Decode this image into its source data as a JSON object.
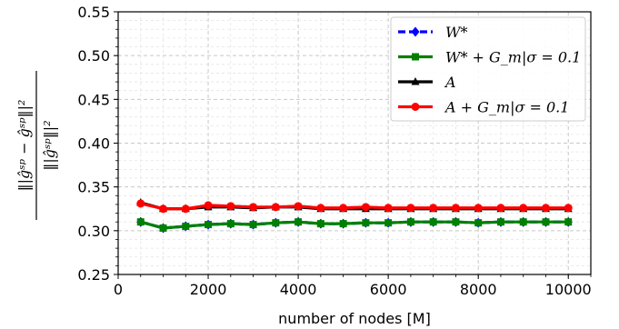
{
  "chart_data": {
    "type": "line",
    "xlabel": "number of nodes [M]",
    "ylabel": {
      "numerator": "‖|ĝˢᵖ − ĝˢᵖ‖|²",
      "denominator": "‖|ĝˢᵖ‖|²"
    },
    "xlim": [
      0,
      10500
    ],
    "ylim": [
      0.25,
      0.55
    ],
    "xticks": [
      0,
      2000,
      4000,
      6000,
      8000,
      10000
    ],
    "xtick_labels": [
      "0",
      "2000",
      "4000",
      "6000",
      "8000",
      "10000"
    ],
    "yticks": [
      0.25,
      0.3,
      0.35,
      0.4,
      0.45,
      0.5,
      0.55
    ],
    "ytick_labels": [
      "0.25",
      "0.30",
      "0.35",
      "0.40",
      "0.45",
      "0.50",
      "0.55"
    ],
    "grid": true,
    "legend_position": "top-right",
    "x": [
      500,
      1000,
      1500,
      2000,
      2500,
      3000,
      3500,
      4000,
      4500,
      5000,
      5500,
      6000,
      6500,
      7000,
      7500,
      8000,
      8500,
      9000,
      9500,
      10000
    ],
    "series": [
      {
        "name": "W*",
        "color": "#0000ff",
        "marker": "diamond",
        "dash": true,
        "values": [
          0.31,
          0.303,
          0.305,
          0.307,
          0.308,
          0.307,
          0.309,
          0.31,
          0.308,
          0.308,
          0.309,
          0.309,
          0.31,
          0.31,
          0.31,
          0.309,
          0.31,
          0.31,
          0.31,
          0.31
        ]
      },
      {
        "name": "W* + G_m|σ = 0.1",
        "color": "#008000",
        "marker": "square",
        "dash": false,
        "values": [
          0.31,
          0.303,
          0.305,
          0.307,
          0.308,
          0.307,
          0.309,
          0.31,
          0.308,
          0.308,
          0.309,
          0.309,
          0.31,
          0.31,
          0.31,
          0.309,
          0.31,
          0.31,
          0.31,
          0.31
        ]
      },
      {
        "name": "A",
        "color": "#000000",
        "marker": "triangle",
        "dash": false,
        "values": [
          0.332,
          0.325,
          0.325,
          0.327,
          0.327,
          0.326,
          0.327,
          0.327,
          0.325,
          0.325,
          0.325,
          0.325,
          0.325,
          0.325,
          0.325,
          0.325,
          0.325,
          0.325,
          0.325,
          0.325
        ]
      },
      {
        "name": "A + G_m|σ = 0.1",
        "color": "#ff0000",
        "marker": "circle",
        "dash": false,
        "values": [
          0.331,
          0.325,
          0.325,
          0.329,
          0.328,
          0.327,
          0.327,
          0.328,
          0.326,
          0.326,
          0.327,
          0.326,
          0.326,
          0.326,
          0.326,
          0.326,
          0.326,
          0.326,
          0.326,
          0.326
        ]
      }
    ]
  }
}
